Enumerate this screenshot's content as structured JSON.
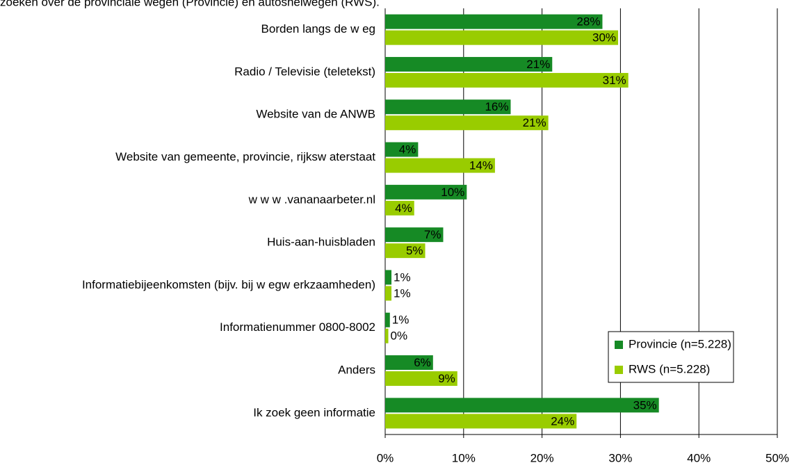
{
  "chart_data": {
    "type": "hbar",
    "title": "zoeken over de provinciale wegen (Provincie) en autosnelwegen (RWS).",
    "categories": [
      "Borden langs de w eg",
      "Radio / Televisie (teletekst)",
      "Website van de ANWB",
      "Website van gemeente, provincie, rijksw aterstaat",
      "w w w .vananaarbeter.nl",
      "Huis-aan-huisbladen",
      "Informatiebijeenkomsten (bijv. bij w egw erkzaamheden)",
      "Informatienummer 0800-8002",
      "Anders",
      "Ik zoek geen informatie"
    ],
    "series": [
      {
        "name": "Provincie (n=5.228)",
        "color": "#168a25",
        "values": [
          27.7,
          21.3,
          16.0,
          4.2,
          10.4,
          7.4,
          0.8,
          0.6,
          6.1,
          34.9
        ],
        "value_labels": [
          "28%",
          "21%",
          "16%",
          "4%",
          "10%",
          "7%",
          "1%",
          "1%",
          "6%",
          "35%"
        ]
      },
      {
        "name": "RWS (n=5.228)",
        "color": "#99cc00",
        "values": [
          29.7,
          31.0,
          20.8,
          14.0,
          3.7,
          5.1,
          0.8,
          0.4,
          9.2,
          24.4
        ],
        "value_labels": [
          "30%",
          "31%",
          "21%",
          "14%",
          "4%",
          "5%",
          "1%",
          "0%",
          "9%",
          "24%"
        ]
      }
    ],
    "xlim": [
      0,
      50
    ],
    "xticks": [
      {
        "value": 0,
        "label": "0%"
      },
      {
        "value": 10,
        "label": "10%"
      },
      {
        "value": 20,
        "label": "20%"
      },
      {
        "value": 30,
        "label": "30%"
      },
      {
        "value": 40,
        "label": "40%"
      },
      {
        "value": 50,
        "label": "50%"
      }
    ],
    "grid": true
  }
}
